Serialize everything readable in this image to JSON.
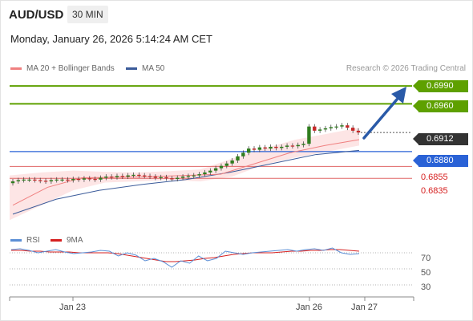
{
  "header": {
    "symbol": "AUD/USD",
    "timeframe": "30 MIN",
    "datetime": "Monday, January 26, 2026 5:14:24 AM CET"
  },
  "legend": {
    "ma20": "MA 20 + Bollinger Bands",
    "ma50": "MA 50",
    "credit": "Research © 2026 Trading Central"
  },
  "price_labels": {
    "r2": "0.6990",
    "r1": "0.6960",
    "last": "0.6912",
    "pivot": "0.6880",
    "s1": "0.6855",
    "s2": "0.6835"
  },
  "indicator_legend": {
    "rsi": "RSI",
    "ma": "9MA"
  },
  "rsi_ticks": [
    "70",
    "50",
    "30"
  ],
  "x_ticks": [
    "Jan 23",
    "Jan 26",
    "Jan 27"
  ],
  "colors": {
    "resistance": "#5ea000",
    "pivot": "#2a62d6",
    "support": "#e06666",
    "ma20": "#f08080",
    "ma50": "#3b5b9a",
    "bollinger_fill": "#fde0e0",
    "candle_up": "#2f7d1e",
    "candle_down": "#c62828",
    "arrow": "#2a5aa8",
    "rsi": "#5b8fd6",
    "rsi_ma": "#d62020"
  },
  "chart_data": [
    {
      "type": "candlestick",
      "title": "AUD/USD 30 MIN",
      "ylim": [
        0.676,
        0.7005
      ],
      "x_ticks": [
        "Jan 23",
        "Jan 26",
        "Jan 27"
      ],
      "levels": [
        {
          "name": "resistance 2",
          "value": 0.699
        },
        {
          "name": "resistance 1",
          "value": 0.696
        },
        {
          "name": "last",
          "value": 0.6912
        },
        {
          "name": "pivot",
          "value": 0.688
        },
        {
          "name": "support 1",
          "value": 0.6855
        },
        {
          "name": "support 2",
          "value": 0.6835
        }
      ],
      "series": [
        {
          "name": "Close",
          "values": [
            0.683,
            0.6832,
            0.6833,
            0.6833,
            0.6832,
            0.6831,
            0.683,
            0.6832,
            0.6833,
            0.6833,
            0.6832,
            0.6834,
            0.6833,
            0.6835,
            0.6834,
            0.6833,
            0.6836,
            0.6838,
            0.6837,
            0.6839,
            0.6838,
            0.684,
            0.6841,
            0.684,
            0.6839,
            0.6838,
            0.6836,
            0.6837,
            0.6835,
            0.6834,
            0.6836,
            0.6838,
            0.6839,
            0.684,
            0.6842,
            0.6845,
            0.6848,
            0.6852,
            0.6856,
            0.686,
            0.6865,
            0.6872,
            0.6878,
            0.6885,
            0.6883,
            0.6887,
            0.6885,
            0.6888,
            0.6886,
            0.6888,
            0.689,
            0.6889,
            0.6891,
            0.6893,
            0.6922,
            0.6915,
            0.6917,
            0.6919,
            0.6921,
            0.6922,
            0.6924,
            0.692,
            0.6915,
            0.6912
          ]
        },
        {
          "name": "MA 20",
          "values": [
            0.679,
            0.682,
            0.6836,
            0.6837,
            0.6838,
            0.684,
            0.6842,
            0.686,
            0.6878,
            0.689,
            0.69
          ]
        },
        {
          "name": "MA 50",
          "values": [
            0.6775,
            0.68,
            0.6815,
            0.6825,
            0.6833,
            0.6845,
            0.686,
            0.6875,
            0.6882
          ]
        }
      ]
    },
    {
      "type": "line",
      "title": "RSI",
      "ylim": [
        20,
        80
      ],
      "yticks": [
        30,
        50,
        70
      ],
      "series": [
        {
          "name": "RSI",
          "values": [
            74,
            75,
            73,
            70,
            72,
            74,
            71,
            69,
            70,
            71,
            73,
            72,
            66,
            70,
            67,
            60,
            63,
            59,
            52,
            60,
            57,
            66,
            60,
            63,
            72,
            70,
            68,
            70,
            71,
            72,
            73,
            74,
            72,
            74,
            75,
            73,
            76,
            70,
            68,
            69
          ]
        },
        {
          "name": "9MA",
          "values": [
            73,
            73,
            72,
            72,
            71,
            71,
            71,
            70,
            70,
            70,
            70,
            69,
            67,
            65,
            63,
            61,
            59,
            59,
            60,
            61,
            63,
            64,
            66,
            68,
            69,
            70,
            70,
            70,
            71,
            72,
            72,
            73,
            73,
            74,
            74,
            73,
            72
          ]
        }
      ]
    }
  ]
}
